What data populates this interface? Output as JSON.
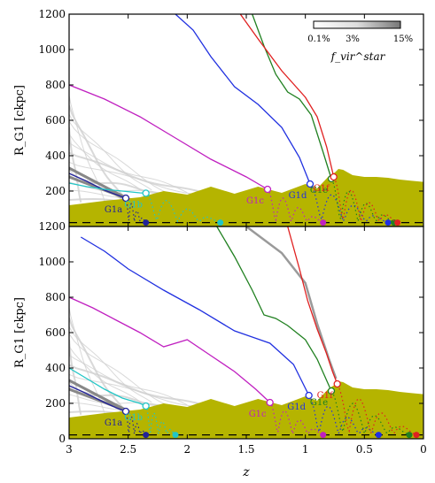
{
  "chart_data": [
    {
      "type": "line",
      "panel": "top",
      "ylabel": "R_G1 [ckpc]",
      "xlim": [
        3,
        0
      ],
      "ylim": [
        0,
        1200
      ],
      "yticks": [
        200,
        400,
        600,
        800,
        1000,
        1200
      ],
      "ytick_labels": [
        "200",
        "400",
        "600",
        "800",
        "1000",
        "1200"
      ],
      "legend": {
        "title": "f_vir^star",
        "ticks": [
          "0.1%",
          "3%",
          "15%"
        ],
        "position": "top-right"
      },
      "envelope": {
        "z": [
          3.0,
          2.7,
          2.4,
          2.2,
          2.0,
          1.8,
          1.6,
          1.4,
          1.2,
          1.0,
          0.9,
          0.8,
          0.75,
          0.72,
          0.68,
          0.6,
          0.5,
          0.4,
          0.3,
          0.2,
          0.1,
          0.0
        ],
        "top": [
          120,
          145,
          165,
          180,
          200,
          205,
          205,
          205,
          210,
          220,
          235,
          265,
          305,
          325,
          320,
          290,
          280,
          280,
          275,
          265,
          258,
          252
        ]
      },
      "series": [
        {
          "name": "G1a",
          "color": "#22229a",
          "z": [
            3.0,
            2.85,
            2.7,
            2.6,
            2.52
          ],
          "r": [
            300,
            255,
            205,
            180,
            160
          ],
          "merge_z": 2.35,
          "marker_z": 2.52,
          "marker_r": 160
        },
        {
          "name": "G1b",
          "color": "#22c6c6",
          "z": [
            3.0,
            2.85,
            2.7,
            2.55,
            2.4,
            2.35
          ],
          "r": [
            245,
            225,
            210,
            200,
            190,
            188
          ],
          "merge_z": 1.72,
          "marker_z": 2.35,
          "marker_r": 188
        },
        {
          "name": "G1c",
          "color": "#c020c0",
          "z": [
            3.0,
            2.7,
            2.4,
            2.1,
            1.8,
            1.5,
            1.32
          ],
          "r": [
            800,
            720,
            620,
            500,
            380,
            280,
            210
          ],
          "merge_z": 0.85,
          "marker_z": 1.32,
          "marker_r": 210
        },
        {
          "name": "G1d",
          "color": "#2030e0",
          "z": [
            2.1,
            1.95,
            1.8,
            1.6,
            1.4,
            1.2,
            1.05,
            0.96
          ],
          "r": [
            1200,
            1110,
            960,
            790,
            690,
            560,
            390,
            240
          ],
          "merge_z": 0.3,
          "marker_z": 0.96,
          "marker_r": 240
        },
        {
          "name": "G1e",
          "color": "#208020",
          "z": [
            1.45,
            1.35,
            1.25,
            1.15,
            1.05,
            0.95,
            0.85,
            0.78
          ],
          "r": [
            1200,
            1020,
            860,
            760,
            720,
            630,
            420,
            270
          ],
          "merge_z": 0.25,
          "marker_z": 0.78,
          "marker_r": 270
        },
        {
          "name": "G1f",
          "color": "#e02020",
          "z": [
            1.55,
            1.4,
            1.2,
            1.0,
            0.9,
            0.82,
            0.76
          ],
          "r": [
            1200,
            1060,
            880,
            730,
            620,
            450,
            280
          ],
          "merge_z": 0.22,
          "marker_z": 0.76,
          "marker_r": 280
        }
      ]
    },
    {
      "type": "line",
      "panel": "bottom",
      "xlabel": "z",
      "ylabel": "R_G1 [ckpc]",
      "xlim": [
        3,
        0
      ],
      "ylim": [
        0,
        1200
      ],
      "xticks": [
        3,
        2.5,
        2,
        1.5,
        1,
        0.5,
        0
      ],
      "xtick_labels": [
        "3",
        "2.5",
        "2",
        "1.5",
        "1",
        "0.5",
        "0"
      ],
      "yticks": [
        0,
        200,
        400,
        600,
        800,
        1000,
        1200
      ],
      "ytick_labels": [
        "0",
        "200",
        "400",
        "600",
        "800",
        "1000",
        "1200"
      ],
      "envelope": {
        "z": [
          3.0,
          2.7,
          2.4,
          2.2,
          2.0,
          1.8,
          1.6,
          1.4,
          1.2,
          1.0,
          0.9,
          0.8,
          0.75,
          0.72,
          0.68,
          0.6,
          0.5,
          0.4,
          0.3,
          0.2,
          0.1,
          0.0
        ],
        "top": [
          120,
          145,
          165,
          180,
          200,
          205,
          205,
          205,
          210,
          220,
          235,
          265,
          305,
          325,
          320,
          290,
          280,
          280,
          275,
          265,
          258,
          252
        ]
      },
      "series": [
        {
          "name": "G1a",
          "color": "#22229a",
          "z": [
            3.0,
            2.85,
            2.7,
            2.6,
            2.52
          ],
          "r": [
            300,
            255,
            205,
            175,
            155
          ],
          "merge_z": 2.35,
          "marker_z": 2.52,
          "marker_r": 155
        },
        {
          "name": "G1b",
          "color": "#22c6c6",
          "z": [
            3.0,
            2.85,
            2.7,
            2.55,
            2.4,
            2.35
          ],
          "r": [
            400,
            340,
            280,
            230,
            200,
            185
          ],
          "merge_z": 2.1,
          "marker_z": 2.35,
          "marker_r": 185
        },
        {
          "name": "G1c",
          "color": "#c020c0",
          "z": [
            3.0,
            2.8,
            2.6,
            2.4,
            2.2,
            2.0,
            1.8,
            1.6,
            1.42,
            1.3
          ],
          "r": [
            800,
            740,
            670,
            600,
            520,
            560,
            470,
            380,
            280,
            205
          ],
          "merge_z": 0.85,
          "marker_z": 1.3,
          "marker_r": 205
        },
        {
          "name": "G1d",
          "color": "#2030e0",
          "z": [
            2.9,
            2.7,
            2.5,
            2.2,
            1.9,
            1.6,
            1.3,
            1.1,
            0.97
          ],
          "r": [
            1140,
            1060,
            960,
            840,
            730,
            610,
            540,
            420,
            245
          ],
          "merge_z": 0.38,
          "marker_z": 0.97,
          "marker_r": 245
        },
        {
          "name": "G1e",
          "color": "#208020",
          "z": [
            1.75,
            1.6,
            1.45,
            1.35,
            1.25,
            1.15,
            1.0,
            0.9,
            0.78
          ],
          "r": [
            1200,
            1030,
            840,
            700,
            680,
            640,
            560,
            450,
            270
          ],
          "merge_z": 0.12,
          "marker_z": 0.78,
          "marker_r": 270
        },
        {
          "name": "G1f",
          "color": "#e02020",
          "z": [
            1.15,
            1.05,
            0.98,
            0.9,
            0.82,
            0.77,
            0.73
          ],
          "r": [
            1200,
            960,
            780,
            620,
            480,
            380,
            310
          ],
          "merge_z": 0.06,
          "marker_z": 0.73,
          "marker_r": 310
        }
      ]
    }
  ]
}
